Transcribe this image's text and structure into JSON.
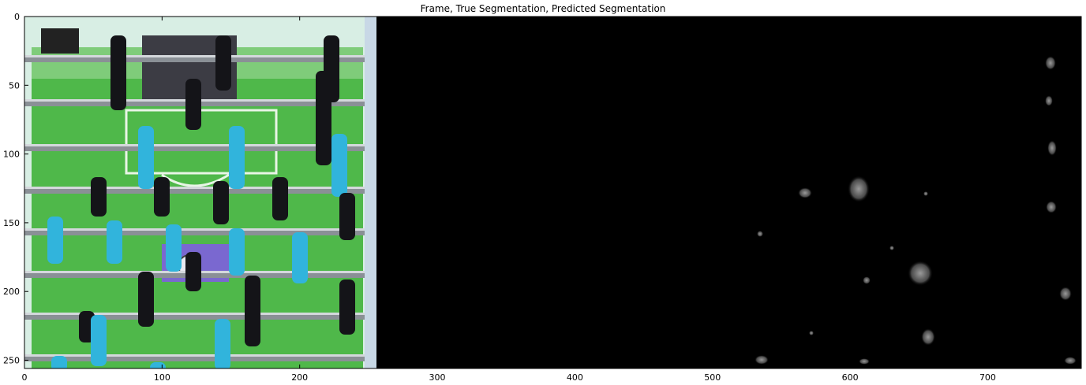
{
  "figure": {
    "title": "Frame, True Segmentation, Predicted Segmentation",
    "x_ticks": [
      "0",
      "100",
      "200",
      "300",
      "400",
      "500",
      "600",
      "700"
    ],
    "y_ticks": [
      "0",
      "50",
      "100",
      "150",
      "200",
      "250"
    ],
    "x_range": [
      0,
      768
    ],
    "y_range": [
      0,
      256
    ]
  },
  "colors": {
    "field_green": "#4fb84a",
    "wall": "#d8eee4",
    "rod": "#8a9096",
    "team_cyan": "#31b4dc",
    "team_black": "#141418",
    "segmentation_background": "#000000",
    "prediction_blob": "#6e6e6e",
    "border_purple": "#6c5fb8"
  },
  "panels": [
    {
      "name": "frame",
      "x_start": 0,
      "x_end": 256
    },
    {
      "name": "true-segmentation",
      "x_start": 256,
      "x_end": 512
    },
    {
      "name": "predicted-segmentation",
      "x_start": 512,
      "x_end": 768
    }
  ]
}
